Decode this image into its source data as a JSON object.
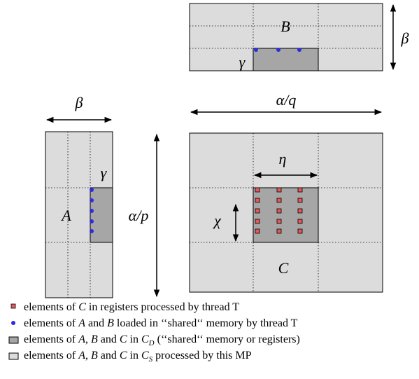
{
  "matrix_b": {
    "label": "B",
    "gamma": "γ",
    "beta": "β"
  },
  "matrix_a": {
    "label": "A",
    "gamma": "γ",
    "beta": "β",
    "height": "α/p"
  },
  "matrix_c": {
    "label": "C",
    "width": "α/q",
    "eta": "η",
    "chi": "χ"
  },
  "legend": [
    [
      "elements of ",
      "C",
      " in registers processed by thread T"
    ],
    [
      "elements of ",
      "A",
      " and ",
      "B",
      " loaded in ‘‘shared‘‘ memory by thread T"
    ],
    [
      "elements of ",
      "A",
      ", ",
      "B",
      " and ",
      "C",
      " in ",
      "C",
      "D",
      " (‘‘shared‘‘ memory or registers)"
    ],
    [
      "elements of ",
      "A",
      ", ",
      "B",
      " and ",
      "C",
      " in ",
      "C",
      "S",
      " processed by this MP"
    ]
  ]
}
